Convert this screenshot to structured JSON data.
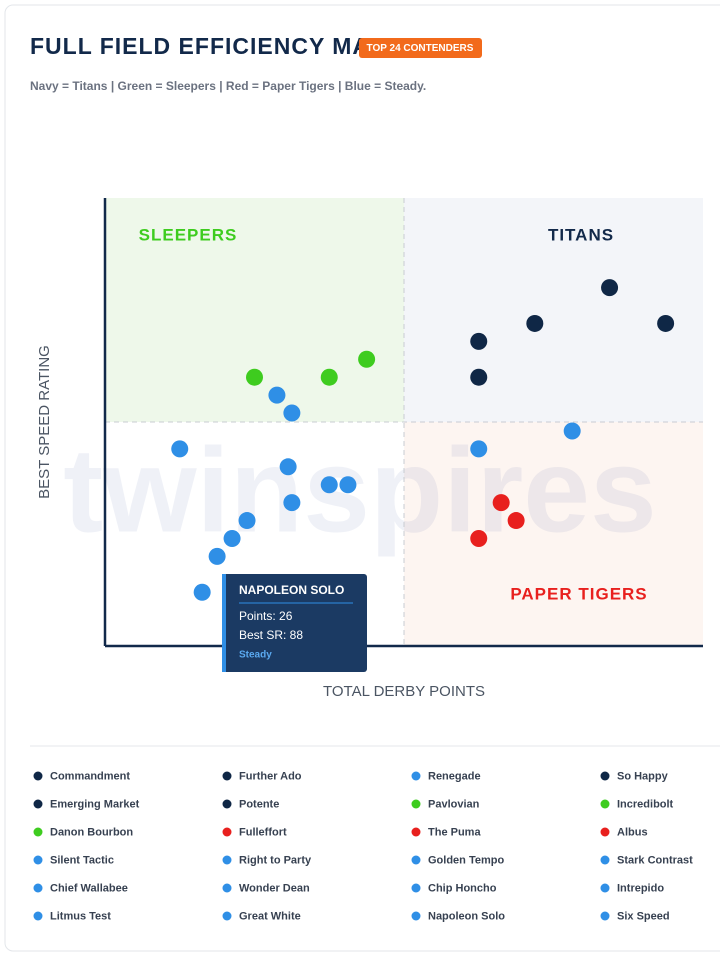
{
  "chart_data": {
    "type": "scatter",
    "title": "FULL FIELD EFFICIENCY MATRIX",
    "badge": "TOP 24 CONTENDERS",
    "subtitle": "Navy = Titans | Green = Sleepers | Red = Paper Tigers | Blue = Steady.",
    "x_label": "TOTAL DERBY POINTS",
    "y_label": "BEST SPEED RATING",
    "watermark": "twinspires",
    "quadrant_labels": {
      "top_left": "SLEEPERS",
      "top_right": "TITANS",
      "bottom_right": "PAPER TIGERS"
    },
    "xlim": [
      0,
      160
    ],
    "ylim": [
      85,
      110
    ],
    "tooltip": {
      "title": "NAPOLEON SOLO",
      "lines": [
        "Points: 26",
        "Best SR: 88"
      ],
      "tag": "Steady"
    },
    "series": [
      {
        "name": "Commandment",
        "color": "#0f2746",
        "x": [
          135
        ],
        "values": [
          105
        ]
      },
      {
        "name": "Further Ado",
        "color": "#0f2746",
        "x": [
          115
        ],
        "values": [
          103
        ]
      },
      {
        "name": "Renegade",
        "color": "#2f8fe6",
        "x": [
          46
        ],
        "values": [
          99
        ]
      },
      {
        "name": "So Happy",
        "color": "#0f2746",
        "x": [
          150
        ],
        "values": [
          103
        ]
      },
      {
        "name": "Emerging Market",
        "color": "#0f2746",
        "x": [
          100
        ],
        "values": [
          102
        ]
      },
      {
        "name": "Potente",
        "color": "#0f2746",
        "x": [
          100
        ],
        "values": [
          100
        ]
      },
      {
        "name": "Pavlovian",
        "color": "#3ecc1f",
        "x": [
          60
        ],
        "values": [
          100
        ]
      },
      {
        "name": "Incredibolt",
        "color": "#3ecc1f",
        "x": [
          70
        ],
        "values": [
          101
        ]
      },
      {
        "name": "Danon Bourbon",
        "color": "#3ecc1f",
        "x": [
          40
        ],
        "values": [
          100
        ]
      },
      {
        "name": "Fulleffort",
        "color": "#e8201e",
        "x": [
          106
        ],
        "values": [
          93
        ]
      },
      {
        "name": "The Puma",
        "color": "#e8201e",
        "x": [
          110
        ],
        "values": [
          92
        ]
      },
      {
        "name": "Albus",
        "color": "#e8201e",
        "x": [
          100
        ],
        "values": [
          91
        ]
      },
      {
        "name": "Silent Tactic",
        "color": "#2f8fe6",
        "x": [
          50
        ],
        "values": [
          98
        ]
      },
      {
        "name": "Right to Party",
        "color": "#2f8fe6",
        "x": [
          20
        ],
        "values": [
          96
        ]
      },
      {
        "name": "Golden Tempo",
        "color": "#2f8fe6",
        "x": [
          100
        ],
        "values": [
          96
        ]
      },
      {
        "name": "Stark Contrast",
        "color": "#2f8fe6",
        "x": [
          125
        ],
        "values": [
          97
        ]
      },
      {
        "name": "Chief Wallabee",
        "color": "#2f8fe6",
        "x": [
          49
        ],
        "values": [
          95
        ]
      },
      {
        "name": "Wonder Dean",
        "color": "#2f8fe6",
        "x": [
          60
        ],
        "values": [
          94
        ]
      },
      {
        "name": "Chip Honcho",
        "color": "#2f8fe6",
        "x": [
          65
        ],
        "values": [
          94
        ]
      },
      {
        "name": "Intrepido",
        "color": "#2f8fe6",
        "x": [
          50
        ],
        "values": [
          93
        ]
      },
      {
        "name": "Litmus Test",
        "color": "#2f8fe6",
        "x": [
          38
        ],
        "values": [
          92
        ]
      },
      {
        "name": "Great White",
        "color": "#2f8fe6",
        "x": [
          34
        ],
        "values": [
          91
        ]
      },
      {
        "name": "Napoleon Solo",
        "color": "#2f8fe6",
        "x": [
          26
        ],
        "values": [
          88
        ]
      },
      {
        "name": "Six Speed",
        "color": "#2f8fe6",
        "x": [
          30
        ],
        "values": [
          90
        ]
      }
    ]
  }
}
